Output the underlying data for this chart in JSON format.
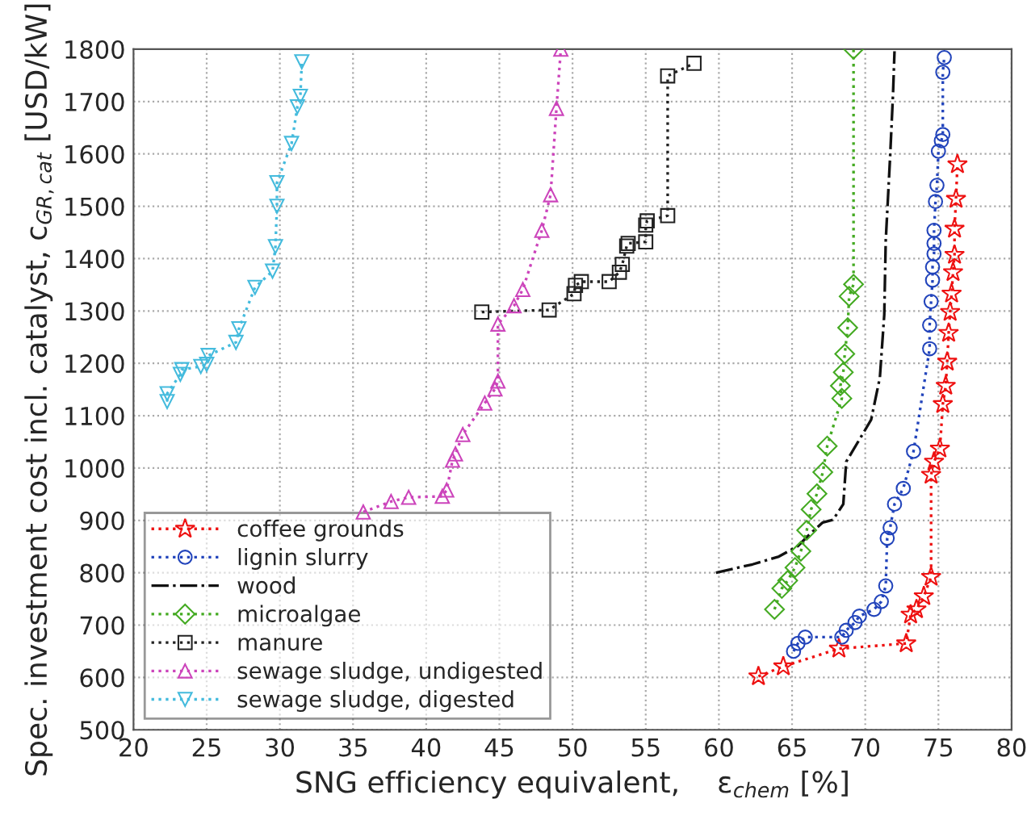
{
  "chart_data": {
    "type": "line",
    "xlabel": "SNG efficiency equivalent,    ε$_{chem}$ [%]",
    "ylabel": "Spec. investment cost incl. catalyst, c$_{GR,cat}$ [USD/kW]",
    "xlim": [
      20,
      80
    ],
    "xticks": [
      20,
      25,
      30,
      35,
      40,
      45,
      50,
      55,
      60,
      65,
      70,
      75,
      80
    ],
    "ylim": [
      500,
      1800
    ],
    "yticks": [
      500,
      600,
      700,
      800,
      900,
      1000,
      1100,
      1200,
      1300,
      1400,
      1500,
      1600,
      1700,
      1800
    ],
    "grid": true,
    "legend": "bottom left",
    "line_style": "dotted",
    "series": [
      {
        "name": "coffee grounds",
        "color": "#ee1111",
        "marker": "star",
        "x": [
          62.7,
          64.4,
          68.2,
          72.8,
          73.1,
          73.5,
          74.0,
          74.5,
          74.5,
          74.7,
          75.1,
          75.3,
          75.5,
          75.6,
          75.7,
          75.8,
          75.9,
          76.0,
          76.1,
          76.1,
          76.2,
          76.3
        ],
        "values": [
          602,
          621,
          655,
          665,
          720,
          730,
          755,
          792,
          987,
          1012,
          1037,
          1122,
          1157,
          1203,
          1258,
          1298,
          1333,
          1374,
          1407,
          1457,
          1514,
          1580
        ]
      },
      {
        "name": "lignin slurry",
        "color": "#2244bb",
        "marker": "circle",
        "x": [
          65.1,
          65.4,
          65.9,
          68.4,
          68.7,
          69.3,
          69.6,
          70.6,
          71.1,
          71.4,
          71.5,
          71.7,
          72.0,
          72.6,
          73.3,
          74.4,
          74.4,
          74.5,
          74.6,
          74.6,
          74.7,
          74.7,
          74.7,
          74.8,
          74.9,
          75.0,
          75.2,
          75.3,
          75.3,
          75.4
        ],
        "values": [
          650,
          665,
          677,
          677,
          690,
          705,
          717,
          730,
          745,
          775,
          866,
          886,
          931,
          961,
          1032,
          1228,
          1273,
          1318,
          1359,
          1384,
          1409,
          1429,
          1454,
          1509,
          1540,
          1605,
          1625,
          1637,
          1756,
          1784
        ]
      },
      {
        "name": "wood",
        "color": "#111111",
        "marker": "none",
        "line_style": "dashdot",
        "x": [
          59.8,
          62.3,
          64.1,
          65.4,
          66.3,
          67.1,
          67.8,
          68.5,
          68.7,
          70.4,
          71.0,
          71.3,
          71.4,
          71.7,
          71.9,
          72.0
        ],
        "values": [
          800,
          816,
          831,
          851,
          876,
          896,
          901,
          931,
          1012,
          1092,
          1173,
          1293,
          1434,
          1595,
          1716,
          1796
        ]
      },
      {
        "name": "microalgae",
        "color": "#44aa22",
        "marker": "diamond",
        "x": [
          63.8,
          64.3,
          64.7,
          65.2,
          65.6,
          66.0,
          66.3,
          66.7,
          67.1,
          67.4,
          68.4,
          68.3,
          68.5,
          68.6,
          68.8,
          68.9,
          69.2,
          69.2
        ],
        "values": [
          730,
          770,
          785,
          810,
          841,
          881,
          921,
          951,
          992,
          1042,
          1133,
          1157,
          1183,
          1218,
          1268,
          1328,
          1351,
          1800
        ]
      },
      {
        "name": "manure",
        "color": "#222222",
        "marker": "square",
        "x": [
          43.8,
          48.4,
          50.1,
          50.2,
          50.6,
          52.5,
          53.2,
          53.4,
          53.7,
          53.8,
          55.0,
          55.0,
          55.1,
          56.5,
          56.5,
          58.3
        ],
        "values": [
          1298,
          1302,
          1333,
          1349,
          1356,
          1356,
          1374,
          1389,
          1424,
          1429,
          1432,
          1464,
          1472,
          1482,
          1749,
          1773
        ]
      },
      {
        "name": "sewage sludge, undigested",
        "color": "#cc44bb",
        "marker": "triangle",
        "x": [
          35.7,
          37.6,
          38.8,
          41.1,
          41.4,
          41.8,
          42.0,
          42.5,
          44.0,
          44.7,
          44.9,
          44.9,
          46.0,
          46.6,
          47.9,
          48.5,
          48.9,
          49.2
        ],
        "values": [
          916,
          936,
          944,
          946,
          958,
          1015,
          1027,
          1064,
          1124,
          1151,
          1166,
          1275,
          1310,
          1341,
          1454,
          1522,
          1687,
          1800
        ]
      },
      {
        "name": "sewage sludge, digested",
        "color": "#44bbdd",
        "marker": "triangle_down",
        "x": [
          22.3,
          22.3,
          23.2,
          23.3,
          24.6,
          25.0,
          25.1,
          27.0,
          27.2,
          28.3,
          29.5,
          29.7,
          29.8,
          29.8,
          30.8,
          31.2,
          31.4,
          31.5
        ],
        "values": [
          1127,
          1142,
          1179,
          1188,
          1194,
          1198,
          1215,
          1240,
          1266,
          1345,
          1376,
          1423,
          1500,
          1545,
          1620,
          1690,
          1710,
          1776
        ]
      }
    ]
  }
}
